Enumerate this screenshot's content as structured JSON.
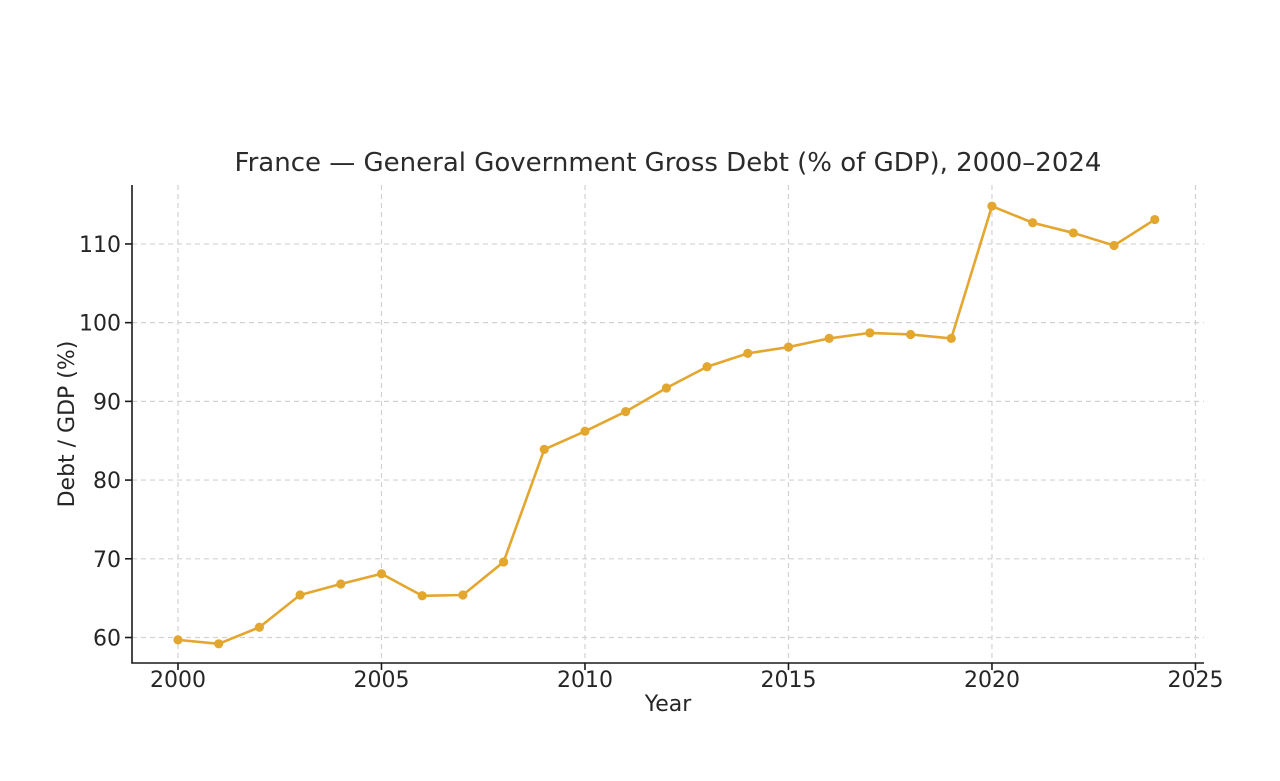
{
  "page": {
    "background": "#ffffff"
  },
  "chart_data": {
    "type": "line",
    "title": "France — General Government Gross Debt (% of GDP), 2000–2024",
    "xlabel": "Year",
    "ylabel": "Debt / GDP (%)",
    "x": [
      2000,
      2001,
      2002,
      2003,
      2004,
      2005,
      2006,
      2007,
      2008,
      2009,
      2010,
      2011,
      2012,
      2013,
      2014,
      2015,
      2016,
      2017,
      2018,
      2019,
      2020,
      2021,
      2022,
      2023,
      2024
    ],
    "values": [
      59.7,
      59.2,
      61.3,
      65.4,
      66.8,
      68.1,
      65.3,
      65.4,
      69.6,
      83.9,
      86.2,
      88.7,
      91.7,
      94.4,
      96.1,
      96.9,
      98.0,
      98.7,
      98.5,
      98.0,
      114.8,
      112.7,
      111.4,
      109.8,
      113.1
    ],
    "x_ticks": [
      2000,
      2005,
      2010,
      2015,
      2020,
      2025
    ],
    "y_ticks": [
      60,
      70,
      80,
      90,
      100,
      110
    ],
    "xlim": [
      1998.87,
      2025.21
    ],
    "ylim": [
      56.76,
      117.49
    ],
    "grid": true,
    "grid_style": "dashed",
    "legend": "none",
    "marker": "circle",
    "colors": {
      "line": "#E3A72F",
      "marker": "#E3A72F",
      "grid": "#d2d2d2",
      "spine": "#1a1a1a",
      "tick_text": "#262626",
      "title_text": "#2b2b2b"
    }
  }
}
